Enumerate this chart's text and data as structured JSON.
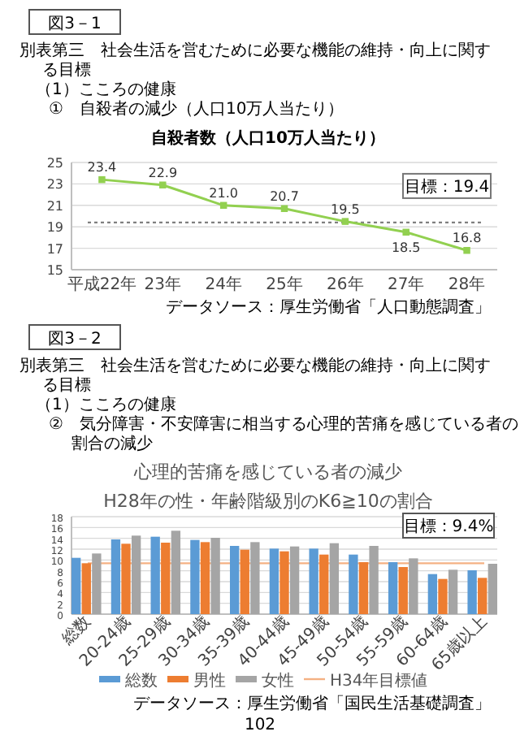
{
  "chart_data": [
    {
      "type": "line",
      "title": "自殺者数（人口10万人当たり）",
      "categories": [
        "平成22年",
        "23年",
        "24年",
        "25年",
        "26年",
        "27年",
        "28年"
      ],
      "values": [
        23.4,
        22.9,
        21.0,
        20.7,
        19.5,
        18.5,
        16.8
      ],
      "color": "#92d050",
      "marker": "square",
      "value_labels": [
        "23.4",
        "22.9",
        "21.0",
        "20.7",
        "19.5",
        "18.5",
        "16.8"
      ],
      "ylim": [
        15,
        25
      ],
      "yticks": [
        15,
        17,
        19,
        21,
        23,
        25
      ],
      "grid": "y",
      "ref_lines": [
        {
          "axis": "y",
          "value": 19.4,
          "label": "目標：19.4",
          "color": "#7f7f7f",
          "line_style": "dotted"
        }
      ],
      "annotations": [
        "図3－1",
        "別表第三　社会生活を営むために必要な機能の維持・向上に関する目標",
        "（1）こころの健康",
        "①　自殺者の減少（人口10万人当たり）",
        "データソース：厚生労働省「人口動態調査」"
      ]
    },
    {
      "type": "bar",
      "title": "心理的苦痛を感じている者の減少",
      "subtitle": "H28年の性・年齢階級別のK6≧10の割合",
      "categories": [
        "総数",
        "20-24歳",
        "25-29歳",
        "30-34歳",
        "35-39歳",
        "40-44歳",
        "45-49歳",
        "50-54歳",
        "55-59歳",
        "60-64歳",
        "65歳以上"
      ],
      "series": [
        {
          "name": "総数",
          "color": "#5b9bd5",
          "values": [
            10.4,
            13.8,
            14.3,
            13.7,
            12.6,
            12.1,
            12.1,
            11.0,
            9.6,
            7.4,
            8.1
          ]
        },
        {
          "name": "男性",
          "color": "#ed7d31",
          "values": [
            9.4,
            13.0,
            13.2,
            13.3,
            11.9,
            11.6,
            11.0,
            9.6,
            8.7,
            6.5,
            6.7
          ]
        },
        {
          "name": "女性",
          "color": "#a5a5a5",
          "values": [
            11.2,
            14.5,
            15.4,
            14.1,
            13.3,
            12.5,
            13.1,
            12.6,
            10.3,
            8.2,
            9.3
          ]
        }
      ],
      "ylim": [
        0,
        18
      ],
      "yticks": [
        0,
        2,
        4,
        6,
        8,
        10,
        12,
        14,
        16,
        18
      ],
      "grid": "y",
      "legend": "bottom",
      "ref_lines": [
        {
          "axis": "y",
          "value": 9.4,
          "label": "H34年目標値",
          "color": "#f4b183",
          "line_style": "solid"
        }
      ],
      "annotations": [
        "図3－2",
        "別表第三　社会生活を営むために必要な機能の維持・向上に関する目標",
        "（1）こころの健康",
        "②　気分障害・不安障害に相当する心理的苦痛を感じている者の割合の減少",
        "目標：9.4%",
        "データソース：厚生労働省「国民生活基礎調査」",
        "102"
      ]
    }
  ]
}
